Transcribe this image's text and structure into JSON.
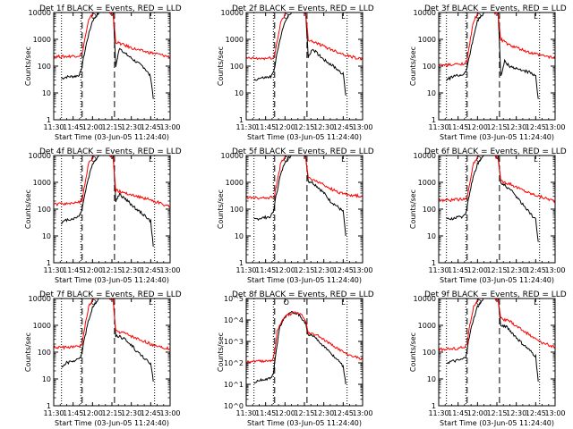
{
  "figure": {
    "background": "#ffffff",
    "events_color": "#000000",
    "lld_color": "#ff0000",
    "time_axis": {
      "tick_labels": [
        "11:30",
        "11:45",
        "12:00",
        "12:15",
        "12:30",
        "12:45",
        "13:00"
      ],
      "start_minutes": 690,
      "end_minutes": 780,
      "xlabel": "Start Time (03-Jun-05 11:24:40)"
    },
    "marker_times": {
      "dotted": [
        696,
        711,
        768
      ],
      "dashed": [
        712,
        737
      ],
      "markers": [
        {
          "label": "O",
          "minutes": 721
        },
        {
          "label": "L",
          "minutes": 765
        }
      ]
    }
  },
  "chart_data": [
    {
      "type": "line",
      "title": "Det 1f BLACK = Events, RED = LLD",
      "ylabel": "Counts/sec",
      "yscale": "log",
      "ylim": [
        1,
        10000
      ],
      "ytick_labels": [
        "1",
        "10",
        "100",
        "1000",
        "10000"
      ],
      "xlabel": "Start Time (03-Jun-05 11:24:40)",
      "series": [
        {
          "name": "Events",
          "color": "#000000",
          "x": [
            696,
            700,
            706,
            709,
            711,
            713,
            716,
            720,
            725,
            730,
            736,
            738,
            741,
            745,
            750,
            755,
            760,
            765,
            767
          ],
          "y": [
            35,
            40,
            42,
            45,
            60,
            200,
            1000,
            5000,
            10000,
            10000,
            10000,
            100,
            500,
            300,
            200,
            130,
            90,
            40,
            6
          ]
        },
        {
          "name": "LLD",
          "color": "#ff0000",
          "x": [
            690,
            700,
            710,
            712,
            714,
            717,
            721,
            727,
            733,
            736,
            738,
            745,
            752,
            760,
            768,
            780
          ],
          "y": [
            230,
            230,
            250,
            300,
            1000,
            5000,
            10000,
            10000,
            10000,
            8000,
            800,
            600,
            450,
            350,
            300,
            220
          ]
        }
      ]
    },
    {
      "type": "line",
      "title": "Det 2f BLACK = Events, RED = LLD",
      "ylabel": "Counts/sec",
      "yscale": "log",
      "ylim": [
        1,
        10000
      ],
      "ytick_labels": [
        "1",
        "10",
        "100",
        "1000",
        "10000"
      ],
      "xlabel": "Start Time (03-Jun-05 11:24:40)",
      "series": [
        {
          "name": "Events",
          "color": "#000000",
          "x": [
            696,
            700,
            706,
            709,
            711,
            713,
            716,
            720,
            725,
            730,
            736,
            738,
            741,
            745,
            750,
            755,
            760,
            765,
            767
          ],
          "y": [
            30,
            35,
            38,
            40,
            55,
            180,
            900,
            5000,
            10000,
            10000,
            10000,
            200,
            450,
            300,
            180,
            120,
            80,
            50,
            8
          ]
        },
        {
          "name": "LLD",
          "color": "#ff0000",
          "x": [
            690,
            700,
            710,
            712,
            714,
            717,
            721,
            727,
            733,
            736,
            738,
            745,
            752,
            760,
            768,
            780
          ],
          "y": [
            200,
            190,
            200,
            250,
            900,
            5000,
            10000,
            10000,
            10000,
            9000,
            1000,
            700,
            500,
            350,
            250,
            180
          ]
        }
      ]
    },
    {
      "type": "line",
      "title": "Det 3f BLACK = Events, RED = LLD",
      "ylabel": "Counts/sec",
      "yscale": "log",
      "ylim": [
        1,
        10000
      ],
      "ytick_labels": [
        "1",
        "10",
        "100",
        "1000",
        "10000"
      ],
      "xlabel": "Start Time (03-Jun-05 11:24:40)",
      "series": [
        {
          "name": "Events",
          "color": "#000000",
          "x": [
            696,
            700,
            706,
            709,
            711,
            713,
            716,
            720,
            725,
            730,
            736,
            738,
            741,
            745,
            750,
            755,
            760,
            765,
            767
          ],
          "y": [
            30,
            40,
            45,
            50,
            60,
            150,
            800,
            5000,
            10000,
            10000,
            10000,
            40,
            150,
            100,
            80,
            70,
            60,
            40,
            6
          ]
        },
        {
          "name": "LLD",
          "color": "#ff0000",
          "x": [
            690,
            700,
            710,
            712,
            714,
            717,
            721,
            727,
            733,
            736,
            738,
            745,
            752,
            760,
            768,
            780
          ],
          "y": [
            110,
            110,
            130,
            160,
            700,
            5000,
            10000,
            10000,
            10000,
            9000,
            1000,
            600,
            450,
            320,
            260,
            200
          ]
        }
      ]
    },
    {
      "type": "line",
      "title": "Det 4f BLACK = Events, RED = LLD",
      "ylabel": "Counts/sec",
      "yscale": "log",
      "ylim": [
        1,
        10000
      ],
      "ytick_labels": [
        "1",
        "10",
        "100",
        "1000",
        "10000"
      ],
      "xlabel": "Start Time (03-Jun-05 11:24:40)",
      "series": [
        {
          "name": "Events",
          "color": "#000000",
          "x": [
            696,
            700,
            706,
            709,
            711,
            713,
            716,
            720,
            725,
            730,
            736,
            738,
            741,
            745,
            750,
            755,
            760,
            765,
            767
          ],
          "y": [
            30,
            40,
            45,
            55,
            70,
            200,
            1000,
            5000,
            10000,
            10000,
            10000,
            200,
            350,
            250,
            150,
            90,
            60,
            35,
            4
          ]
        },
        {
          "name": "LLD",
          "color": "#ff0000",
          "x": [
            690,
            700,
            710,
            712,
            714,
            717,
            721,
            727,
            733,
            736,
            738,
            745,
            752,
            760,
            768,
            780
          ],
          "y": [
            150,
            160,
            180,
            220,
            800,
            5000,
            10000,
            10000,
            10000,
            8000,
            500,
            400,
            320,
            260,
            200,
            120
          ]
        }
      ]
    },
    {
      "type": "line",
      "title": "Det 5f BLACK = Events, RED = LLD",
      "ylabel": "Counts/sec",
      "yscale": "log",
      "ylim": [
        1,
        10000
      ],
      "ytick_labels": [
        "1",
        "10",
        "100",
        "1000",
        "10000"
      ],
      "xlabel": "Start Time (03-Jun-05 11:24:40)",
      "series": [
        {
          "name": "Events",
          "color": "#000000",
          "x": [
            696,
            700,
            706,
            709,
            711,
            713,
            716,
            720,
            725,
            730,
            736,
            738,
            741,
            745,
            750,
            755,
            760,
            765,
            767
          ],
          "y": [
            40,
            45,
            50,
            55,
            80,
            300,
            1500,
            6000,
            10000,
            10000,
            10000,
            1100,
            1000,
            700,
            400,
            200,
            130,
            80,
            10
          ]
        },
        {
          "name": "LLD",
          "color": "#ff0000",
          "x": [
            690,
            700,
            710,
            712,
            714,
            717,
            721,
            727,
            733,
            736,
            738,
            745,
            752,
            760,
            768,
            780
          ],
          "y": [
            270,
            260,
            280,
            320,
            1200,
            6000,
            10000,
            10000,
            10000,
            9000,
            1400,
            1100,
            700,
            450,
            350,
            300
          ]
        }
      ]
    },
    {
      "type": "line",
      "title": "Det 6f BLACK = Events, RED = LLD",
      "ylabel": "Counts/sec",
      "yscale": "log",
      "ylim": [
        1,
        10000
      ],
      "ytick_labels": [
        "1",
        "10",
        "100",
        "1000",
        "10000"
      ],
      "xlabel": "Start Time (03-Jun-05 11:24:40)",
      "series": [
        {
          "name": "Events",
          "color": "#000000",
          "x": [
            696,
            700,
            706,
            709,
            711,
            713,
            716,
            720,
            725,
            730,
            736,
            738,
            741,
            745,
            750,
            755,
            760,
            765,
            767
          ],
          "y": [
            40,
            45,
            50,
            55,
            70,
            250,
            1200,
            5000,
            10000,
            10000,
            10000,
            900,
            800,
            550,
            300,
            150,
            80,
            40,
            6
          ]
        },
        {
          "name": "LLD",
          "color": "#ff0000",
          "x": [
            690,
            700,
            710,
            712,
            714,
            717,
            721,
            727,
            733,
            736,
            738,
            745,
            752,
            760,
            768,
            780
          ],
          "y": [
            220,
            220,
            240,
            280,
            1000,
            5000,
            10000,
            10000,
            10000,
            8000,
            1100,
            900,
            600,
            400,
            300,
            200
          ]
        }
      ]
    },
    {
      "type": "line",
      "title": "Det 7f BLACK = Events, RED = LLD",
      "ylabel": "Counts/sec",
      "yscale": "log",
      "ylim": [
        1,
        10000
      ],
      "ytick_labels": [
        "1",
        "10",
        "100",
        "1000",
        "10000"
      ],
      "xlabel": "Start Time (03-Jun-05 11:24:40)",
      "series": [
        {
          "name": "Events",
          "color": "#000000",
          "x": [
            696,
            700,
            706,
            709,
            711,
            713,
            716,
            720,
            725,
            730,
            736,
            738,
            741,
            745,
            750,
            755,
            760,
            765,
            767
          ],
          "y": [
            30,
            40,
            45,
            55,
            70,
            200,
            1000,
            5000,
            10000,
            10000,
            10000,
            400,
            400,
            300,
            180,
            100,
            60,
            35,
            8
          ]
        },
        {
          "name": "LLD",
          "color": "#ff0000",
          "x": [
            690,
            700,
            710,
            712,
            714,
            717,
            721,
            727,
            733,
            736,
            738,
            745,
            752,
            760,
            768,
            780
          ],
          "y": [
            150,
            150,
            160,
            200,
            900,
            5000,
            10000,
            10000,
            10000,
            8000,
            600,
            500,
            350,
            250,
            180,
            130
          ]
        }
      ]
    },
    {
      "type": "line",
      "title": "Det 8f BLACK = Events, RED = LLD",
      "ylabel": "Counts/sec",
      "yscale": "log",
      "ylim": [
        1,
        100000
      ],
      "ytick_labels": [
        "10^0",
        "10^1",
        "10^2",
        "10^3",
        "10^4",
        "10^5"
      ],
      "xlabel": "Start Time (03-Jun-05 11:24:40)",
      "series": [
        {
          "name": "Events",
          "color": "#000000",
          "x": [
            696,
            700,
            706,
            709,
            711,
            713,
            716,
            720,
            725,
            730,
            736,
            738,
            741,
            745,
            750,
            755,
            760,
            765,
            767
          ],
          "y": [
            12,
            15,
            18,
            20,
            35,
            300,
            5000,
            14000,
            22000,
            20000,
            7000,
            1800,
            1900,
            1200,
            600,
            300,
            150,
            70,
            10
          ]
        },
        {
          "name": "LLD",
          "color": "#ff0000",
          "x": [
            690,
            700,
            710,
            712,
            714,
            717,
            721,
            727,
            733,
            736,
            738,
            745,
            752,
            760,
            768,
            780
          ],
          "y": [
            120,
            120,
            130,
            300,
            3000,
            8000,
            16000,
            22000,
            18000,
            8000,
            2500,
            2000,
            1000,
            500,
            250,
            150
          ]
        }
      ]
    },
    {
      "type": "line",
      "title": "Det 9f BLACK = Events, RED = LLD",
      "ylabel": "Counts/sec",
      "yscale": "log",
      "ylim": [
        1,
        10000
      ],
      "ytick_labels": [
        "1",
        "10",
        "100",
        "1000",
        "10000"
      ],
      "xlabel": "Start Time (03-Jun-05 11:24:40)",
      "series": [
        {
          "name": "Events",
          "color": "#000000",
          "x": [
            696,
            700,
            706,
            709,
            711,
            713,
            716,
            720,
            725,
            730,
            736,
            738,
            741,
            745,
            750,
            755,
            760,
            765,
            767
          ],
          "y": [
            40,
            45,
            50,
            55,
            70,
            250,
            1200,
            5000,
            10000,
            10000,
            10000,
            900,
            1000,
            650,
            350,
            200,
            120,
            70,
            8
          ]
        },
        {
          "name": "LLD",
          "color": "#ff0000",
          "x": [
            690,
            700,
            710,
            712,
            714,
            717,
            721,
            727,
            733,
            736,
            738,
            745,
            752,
            760,
            768,
            780
          ],
          "y": [
            130,
            130,
            150,
            200,
            1000,
            5000,
            10000,
            10000,
            10000,
            8000,
            1800,
            1400,
            800,
            450,
            250,
            150
          ]
        }
      ]
    }
  ]
}
